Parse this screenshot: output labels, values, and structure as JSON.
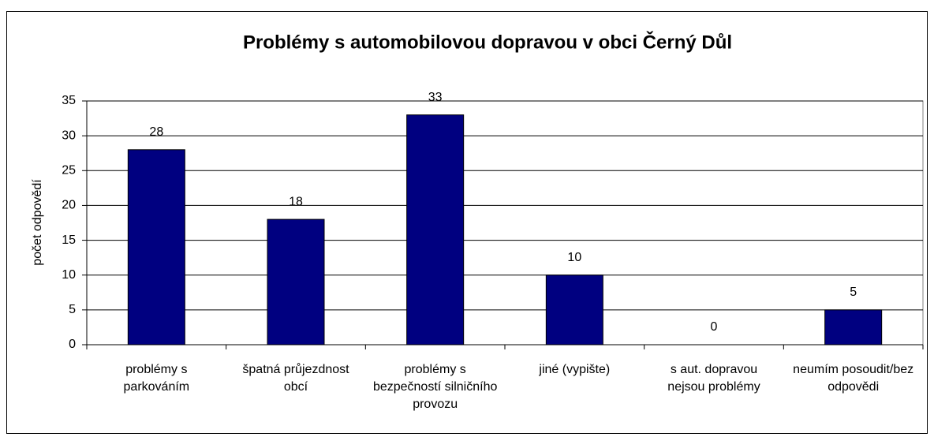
{
  "chart_data": {
    "type": "bar",
    "title": "Problémy s automobilovou dopravou v obci Černý Důl",
    "y_label": "počet odpovědí",
    "categories": [
      "problémy s parkováním",
      "špatná průjezdnost obcí",
      "problémy s bezpečností silničního provozu",
      "jiné (vypište)",
      "s aut. dopravou nejsou problémy",
      "neumím posoudit/bez odpovědi"
    ],
    "values": [
      28,
      18,
      33,
      10,
      0,
      5
    ],
    "color": "#000080",
    "ylim": [
      0,
      35
    ],
    "yticks": [
      0,
      5,
      10,
      15,
      20,
      25,
      30,
      35
    ],
    "grid": true
  }
}
